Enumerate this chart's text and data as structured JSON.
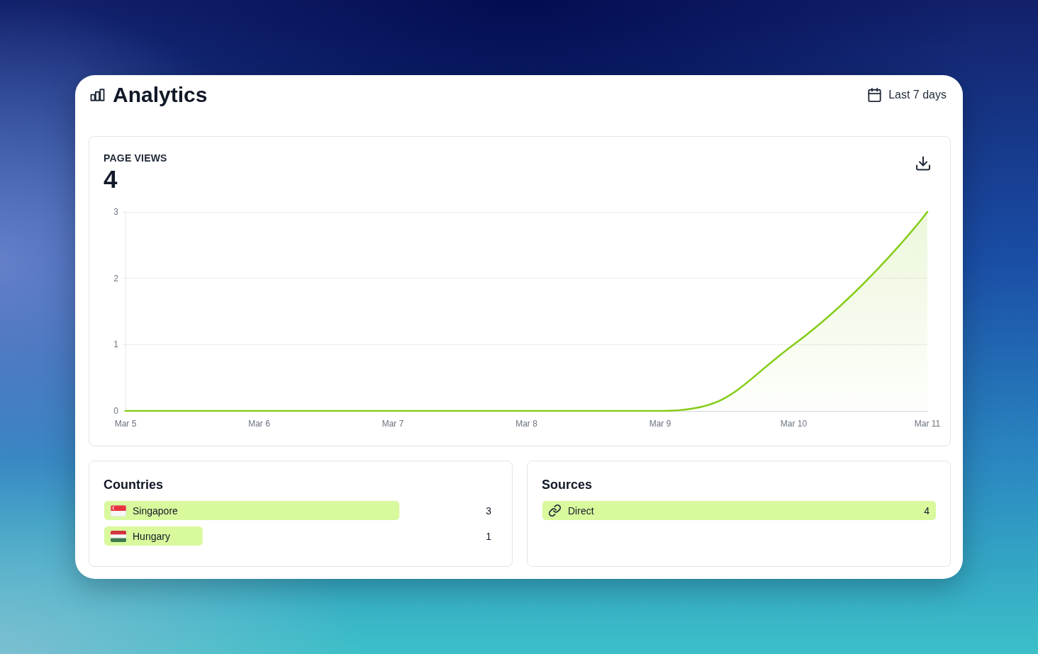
{
  "chart_data": [
    {
      "type": "other",
      "title": "Analytics",
      "annotations": [
        "Last 7 days"
      ]
    },
    {
      "type": "area",
      "title": "PAGE VIEWS",
      "subtitle": "4",
      "categories": [
        "Mar 5",
        "Mar 6",
        "Mar 7",
        "Mar 8",
        "Mar 9",
        "Mar 10",
        "Mar 11"
      ],
      "values": [
        0,
        0,
        0,
        0,
        0,
        1,
        3
      ],
      "color": "#84cc16",
      "ylim": [
        0,
        3
      ],
      "yticks": [
        0,
        1,
        2,
        3
      ],
      "grid": "y",
      "marker": "none",
      "line_style": "solid"
    },
    {
      "type": "bar",
      "orientation": "horizontal",
      "title": "Countries",
      "categories": [
        "Singapore",
        "Hungary"
      ],
      "values": [
        3,
        1
      ],
      "color": "#d9f99d",
      "data_labels": true,
      "tick_labels": "y"
    },
    {
      "type": "bar",
      "orientation": "horizontal",
      "title": "Sources",
      "categories": [
        "Direct"
      ],
      "values": [
        4
      ],
      "color": "#d9f99d",
      "data_labels": true,
      "tick_labels": "y"
    }
  ]
}
